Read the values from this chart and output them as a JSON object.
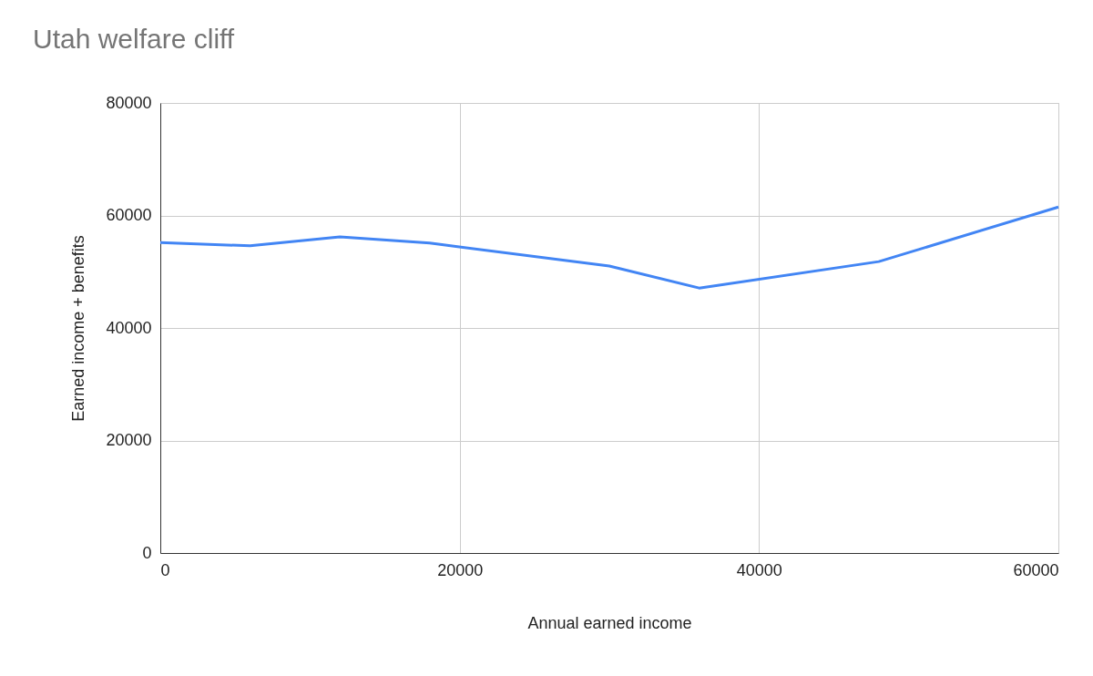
{
  "chart_data": {
    "type": "line",
    "title": "Utah welfare cliff",
    "xlabel": "Annual earned income",
    "ylabel": "Earned income + benefits",
    "x": [
      0,
      6000,
      12000,
      18000,
      30000,
      36000,
      48000,
      60000
    ],
    "series": [
      {
        "color": "#4285f4",
        "values": [
          55200,
          54600,
          56200,
          55100,
          51000,
          47100,
          51800,
          61500
        ]
      }
    ],
    "xlim": [
      0,
      60000
    ],
    "xticks": [
      0,
      20000,
      40000,
      60000
    ],
    "ylim": [
      0,
      80000
    ],
    "yticks": [
      0,
      20000,
      40000,
      60000,
      80000
    ],
    "grid": true,
    "marker": "none",
    "line_style": "solid"
  }
}
